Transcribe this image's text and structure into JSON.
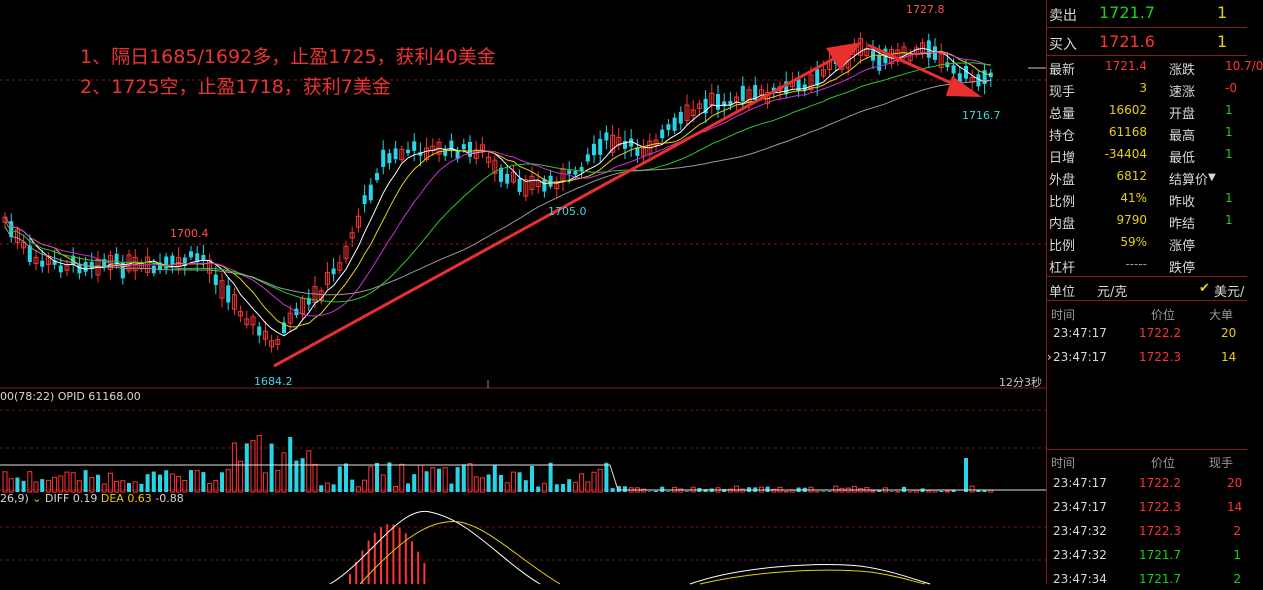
{
  "annotations": {
    "line1": "1、隔日1685/1692多，止盈1725，获利40美金",
    "line2": "2、1725空，止盈1718，获利7美金"
  },
  "price_labels": {
    "high": "1727.8",
    "low": "1684.2",
    "mid_low": "1705.0",
    "left_level": "1700.4",
    "right_low": "1716.7"
  },
  "timer": "12分3秒",
  "volume_header": "00(78:22)  OPID 61168.00",
  "macd_header": {
    "params": "26,9)",
    "diff": "DIFF 0.19",
    "dea": "DEA 0.63",
    "macd": "-0.88"
  },
  "quotes": {
    "sell": {
      "label": "卖出",
      "price": "1721.7",
      "qty": "1"
    },
    "buy": {
      "label": "买入",
      "price": "1721.6",
      "qty": "1"
    }
  },
  "stats": [
    {
      "l1": "最新",
      "v1": "1721.4",
      "l2": "涨跌",
      "v2": "10.7/0"
    },
    {
      "l1": "现手",
      "v1": "3",
      "l2": "速涨",
      "v2": "-0"
    },
    {
      "l1": "总量",
      "v1": "16602",
      "l2": "开盘",
      "v2": "1"
    },
    {
      "l1": "持仓",
      "v1": "61168",
      "l2": "最高",
      "v2": "1"
    },
    {
      "l1": "日增",
      "v1": "-34404",
      "l2": "最低",
      "v2": "1"
    },
    {
      "l1": "外盘",
      "v1": "6812",
      "l2": "结算价",
      "v2": ""
    },
    {
      "l1": "比例",
      "v1": "41%",
      "l2": "昨收",
      "v2": "1"
    },
    {
      "l1": "内盘",
      "v1": "9790",
      "l2": "昨结",
      "v2": "1"
    },
    {
      "l1": "比例",
      "v1": "59%",
      "l2": "涨停",
      "v2": ""
    },
    {
      "l1": "杠杆",
      "v1": "-----",
      "l2": "跌停",
      "v2": ""
    }
  ],
  "unit": {
    "label": "单位",
    "value": "元/克",
    "check": "✔",
    "currency": "美元/"
  },
  "big_orders": {
    "headers": [
      "时间",
      "价位",
      "大单"
    ],
    "rows": [
      {
        "time": "23:47:17",
        "price": "1722.2",
        "qty": "20"
      },
      {
        "time": "23:47:17",
        "price": "1722.3",
        "qty": "14"
      }
    ]
  },
  "ticks": {
    "headers": [
      "时间",
      "价位",
      "现手"
    ],
    "rows": [
      {
        "time": "23:47:17",
        "price": "1722.2",
        "qty": "20"
      },
      {
        "time": "23:47:17",
        "price": "1722.3",
        "qty": "14"
      },
      {
        "time": "23:47:32",
        "price": "1722.3",
        "qty": "2"
      },
      {
        "time": "23:47:32",
        "price": "1721.7",
        "qty": "1"
      },
      {
        "time": "23:47:34",
        "price": "1721.7",
        "qty": "2"
      }
    ]
  },
  "colors": {
    "up": "#ff3333",
    "down": "#27d6e6",
    "accent": "#e33"
  }
}
